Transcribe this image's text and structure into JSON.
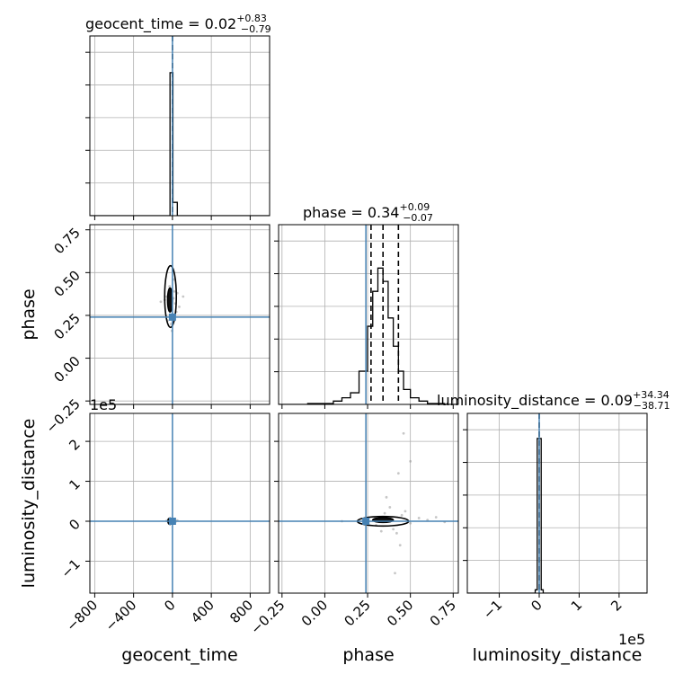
{
  "chart_data": {
    "type": "corner",
    "parameters": [
      "geocent_time",
      "phase",
      "luminosity_distance"
    ],
    "truth_color": "#4682b4",
    "truths": {
      "geocent_time": 0,
      "phase": 0.24,
      "luminosity_distance": 0
    },
    "offset_text": {
      "luminosity_distance_y": "1e5",
      "luminosity_distance_x": "1e5"
    },
    "titles": [
      {
        "param": "geocent_time",
        "prefix": "geocent_time = ",
        "median": "0.02",
        "plus": "+0.83",
        "minus": "−0.79"
      },
      {
        "param": "phase",
        "prefix": "phase = ",
        "median": "0.34",
        "plus": "+0.09",
        "minus": "−0.07"
      },
      {
        "param": "luminosity_distance",
        "prefix": "luminosity_distance = ",
        "median": "0.09",
        "plus": "+34.34",
        "minus": "−38.71"
      }
    ],
    "axes": {
      "geocent_time": {
        "range": [
          -850,
          1000
        ],
        "ticks": [
          -800,
          -400,
          0,
          400,
          800
        ],
        "tick_labels": [
          "−800",
          "−400",
          "0",
          "400",
          "800"
        ]
      },
      "phase": {
        "range": [
          -0.27,
          0.78
        ],
        "ticks": [
          -0.25,
          0.0,
          0.25,
          0.5,
          0.75
        ],
        "tick_labels": [
          "−0.25",
          "0.00",
          "0.25",
          "0.50",
          "0.75"
        ]
      },
      "luminosity_distance": {
        "range": [
          -1.8,
          2.7
        ],
        "ticks": [
          -1,
          0,
          1,
          2
        ],
        "tick_labels": [
          "−1",
          "0",
          "1",
          "2"
        ]
      }
    },
    "histograms": [
      {
        "param": "geocent_time",
        "bin_edges": [
          -100,
          -85,
          -70,
          -55,
          -40,
          -25,
          -10,
          5,
          20,
          35,
          50,
          65,
          80,
          95
        ],
        "counts": [
          0,
          0,
          0,
          0,
          0,
          0.86,
          0.86,
          0.08,
          0.08,
          0.08,
          0,
          0,
          0
        ],
        "quantiles": [
          0.0
        ],
        "ymax": 1.0
      },
      {
        "param": "phase",
        "bin_edges": [
          -0.15,
          -0.1,
          -0.05,
          0.0,
          0.05,
          0.1,
          0.15,
          0.2,
          0.25,
          0.28,
          0.31,
          0.34,
          0.37,
          0.4,
          0.43,
          0.46,
          0.5,
          0.55,
          0.6,
          0.65,
          0.7,
          0.75,
          0.78
        ],
        "counts": [
          0.0,
          0.005,
          0.005,
          0.005,
          0.02,
          0.04,
          0.07,
          0.2,
          0.47,
          0.68,
          0.82,
          0.74,
          0.52,
          0.35,
          0.2,
          0.09,
          0.04,
          0.02,
          0.005,
          0.005,
          0.0,
          0.0
        ],
        "quantiles": [
          0.27,
          0.34,
          0.43
        ],
        "ymax": 1.0
      },
      {
        "param": "luminosity_distance",
        "bin_edges": [
          -0.2,
          -0.1,
          -0.05,
          0.0,
          0.05,
          0.1,
          0.2
        ],
        "counts": [
          0.0,
          0.02,
          0.93,
          0.93,
          0.02,
          0.0
        ],
        "quantiles": [
          0.0
        ],
        "ymax": 1.0
      }
    ],
    "scatter": [
      {
        "x": "geocent_time",
        "y": "phase",
        "points": [
          [
            -60,
            0.36
          ],
          [
            -40,
            0.3
          ],
          [
            -30,
            0.42
          ],
          [
            -20,
            0.33
          ],
          [
            -10,
            0.28
          ],
          [
            10,
            0.35
          ],
          [
            20,
            0.39
          ],
          [
            30,
            0.32
          ],
          [
            50,
            0.38
          ],
          [
            -80,
            0.34
          ],
          [
            70,
            0.3
          ],
          [
            -50,
            0.22
          ],
          [
            15,
            0.46
          ],
          [
            -15,
            0.2
          ],
          [
            40,
            0.27
          ],
          [
            -120,
            0.33
          ],
          [
            110,
            0.36
          ],
          [
            5,
            0.52
          ],
          [
            -5,
            0.16
          ]
        ],
        "contours": [
          {
            "cx": -20,
            "cy": 0.36,
            "rx": 60,
            "ry": 0.18,
            "fill": false
          },
          {
            "cx": -25,
            "cy": 0.34,
            "rx": 25,
            "ry": 0.07,
            "fill": true
          }
        ]
      },
      {
        "x": "geocent_time",
        "y": "luminosity_distance",
        "points": [
          [
            -40,
            0.05
          ],
          [
            -20,
            -0.03
          ],
          [
            10,
            0.04
          ],
          [
            30,
            -0.02
          ],
          [
            -60,
            0.01
          ],
          [
            50,
            0.02
          ],
          [
            -10,
            0.06
          ]
        ],
        "contours": [
          {
            "cx": -25,
            "cy": 0.0,
            "rx": 22,
            "ry": 0.08,
            "fill": true
          }
        ]
      },
      {
        "x": "phase",
        "y": "luminosity_distance",
        "points": [
          [
            0.3,
            -0.1
          ],
          [
            0.35,
            0.2
          ],
          [
            0.4,
            -0.2
          ],
          [
            0.45,
            0.15
          ],
          [
            0.5,
            -0.05
          ],
          [
            0.55,
            0.08
          ],
          [
            0.38,
            0.35
          ],
          [
            0.42,
            -0.3
          ],
          [
            0.47,
            0.25
          ],
          [
            0.33,
            -0.25
          ],
          [
            0.6,
            0.03
          ],
          [
            0.7,
            -0.02
          ],
          [
            0.25,
            0.05
          ],
          [
            0.2,
            -0.03
          ],
          [
            0.46,
            2.2
          ],
          [
            0.43,
            1.2
          ],
          [
            0.41,
            -1.3
          ],
          [
            0.5,
            1.5
          ],
          [
            0.36,
            0.6
          ],
          [
            0.44,
            -0.6
          ],
          [
            0.65,
            0.1
          ],
          [
            0.1,
            0.0
          ]
        ],
        "contours": [
          {
            "cx": 0.34,
            "cy": 0.0,
            "rx": 0.15,
            "ry": 0.12,
            "fill": false
          },
          {
            "cx": 0.34,
            "cy": 0.03,
            "rx": 0.06,
            "ry": 0.06,
            "fill": true
          }
        ]
      }
    ]
  }
}
